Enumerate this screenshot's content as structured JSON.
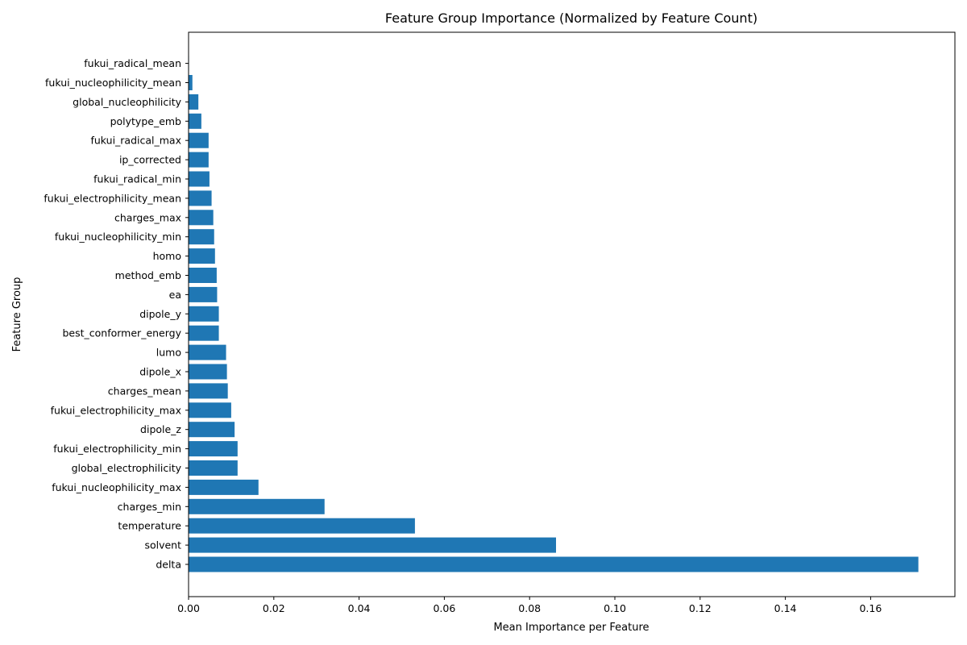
{
  "chart_data": {
    "type": "bar",
    "orientation": "horizontal",
    "title": "Feature Group Importance (Normalized by Feature Count)",
    "xlabel": "Mean Importance per Feature",
    "ylabel": "Feature Group",
    "categories": [
      "delta",
      "solvent",
      "temperature",
      "charges_min",
      "fukui_nucleophilicity_max",
      "global_electrophilicity",
      "fukui_electrophilicity_min",
      "dipole_z",
      "fukui_electrophilicity_max",
      "charges_mean",
      "dipole_x",
      "lumo",
      "best_conformer_energy",
      "dipole_y",
      "ea",
      "method_emb",
      "homo",
      "fukui_nucleophilicity_min",
      "charges_max",
      "fukui_electrophilicity_mean",
      "fukui_radical_min",
      "ip_corrected",
      "fukui_radical_max",
      "polytype_emb",
      "global_nucleophilicity",
      "fukui_nucleophilicity_mean",
      "fukui_radical_mean"
    ],
    "values": [
      0.1712,
      0.0862,
      0.0531,
      0.0319,
      0.0164,
      0.0115,
      0.0115,
      0.0108,
      0.01,
      0.0092,
      0.009,
      0.0088,
      0.0071,
      0.0071,
      0.0067,
      0.0066,
      0.0062,
      0.006,
      0.0058,
      0.0054,
      0.0049,
      0.0047,
      0.0047,
      0.003,
      0.0023,
      0.0009,
      0.0001
    ],
    "xlim": [
      0,
      0.18
    ],
    "xticks": [
      0.0,
      0.02,
      0.04,
      0.06,
      0.08,
      0.1,
      0.12,
      0.14,
      0.16
    ],
    "xtick_labels": [
      "0.00",
      "0.02",
      "0.04",
      "0.06",
      "0.08",
      "0.10",
      "0.12",
      "0.14",
      "0.16"
    ],
    "bar_color": "#1f77b4",
    "grid": false,
    "legend": "none"
  }
}
